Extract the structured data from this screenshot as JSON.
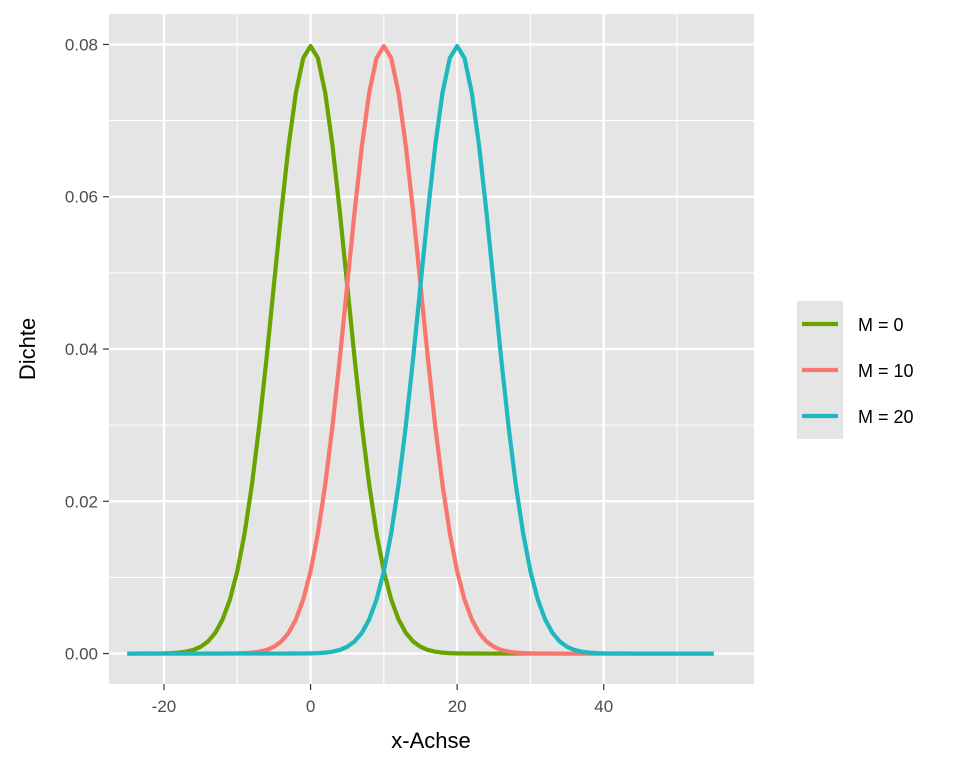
{
  "chart_data": {
    "type": "line",
    "xlabel": "x-Achse",
    "ylabel": "Dichte",
    "xlim": [
      -27.5,
      60.5
    ],
    "ylim": [
      -0.004,
      0.084
    ],
    "x_ticks": [
      -20,
      0,
      20,
      40
    ],
    "x_tick_labels": [
      "-20",
      "0",
      "20",
      "40"
    ],
    "y_ticks": [
      0,
      0.02,
      0.04,
      0.06,
      0.08
    ],
    "y_tick_labels": [
      "0.00",
      "0.02",
      "0.04",
      "0.06",
      "0.08"
    ],
    "grid": true,
    "legend_position": "right",
    "x_range": [
      -25,
      55
    ],
    "x_step": 1,
    "series": [
      {
        "name": "M = 0",
        "mean": 0,
        "sd": 5,
        "color": "#6aa300"
      },
      {
        "name": "M = 10",
        "mean": 10,
        "sd": 5,
        "color": "#f8766d"
      },
      {
        "name": "M = 20",
        "mean": 20,
        "sd": 5,
        "color": "#1fb8bf"
      }
    ]
  }
}
